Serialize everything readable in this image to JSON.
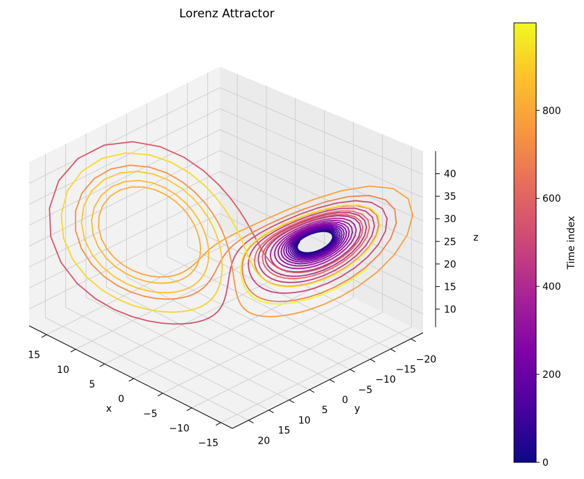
{
  "chart_data": {
    "type": "line3d",
    "title": "Lorenz Attractor",
    "xlabel": "x",
    "ylabel": "y",
    "zlabel": "z",
    "xlim": [
      -17,
      18
    ],
    "ylim": [
      -23,
      24
    ],
    "zlim": [
      6,
      45
    ],
    "xticks": [
      15,
      10,
      5,
      0,
      -5,
      -10,
      -15
    ],
    "yticks": [
      -20,
      -15,
      -10,
      -5,
      0,
      5,
      10,
      15,
      20
    ],
    "zticks": [
      10,
      15,
      20,
      25,
      30,
      35,
      40
    ],
    "grid": true,
    "colormap": "plasma",
    "colorbar": {
      "label": "Time index",
      "label_color": "#4b4bdc",
      "range": [
        0,
        999
      ],
      "ticks": [
        0,
        200,
        400,
        600,
        800
      ]
    }
  }
}
